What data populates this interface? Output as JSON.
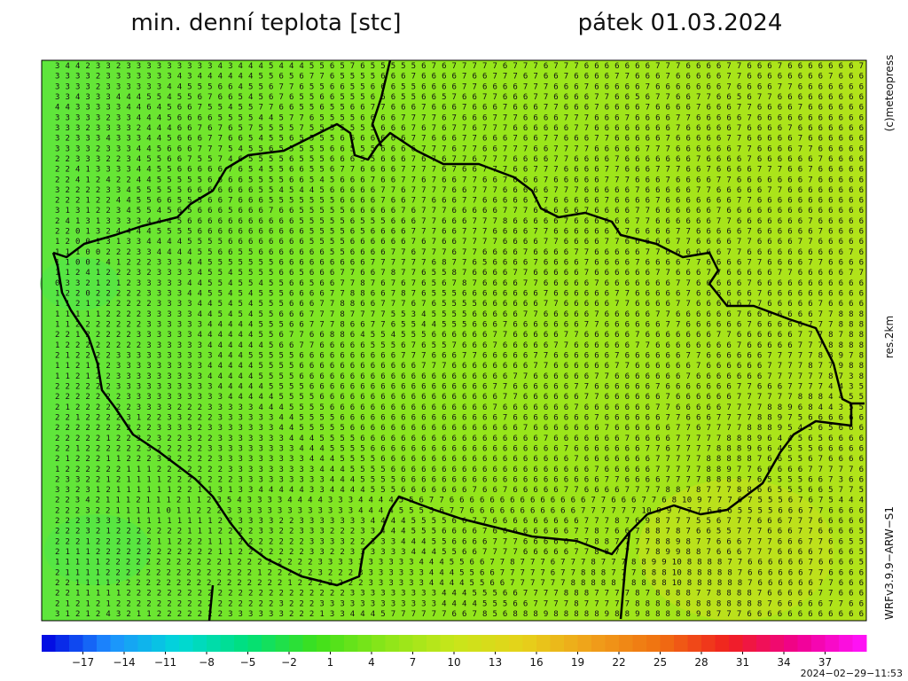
{
  "header": {
    "title": "min. denní teplota [stc]",
    "date": "pátek 01.03.2024"
  },
  "side_labels": {
    "copyright": "(c)meteopress",
    "resolution": "res.2km",
    "model": "WRFv3.9.9−ARW−S1"
  },
  "timestamp": "2024−02−29−11:53",
  "colorbar": {
    "clim": [
      -20,
      40
    ],
    "colors": [
      "#0000e0",
      "#1e90ff",
      "#00d8d8",
      "#00e07a",
      "#3ee01a",
      "#8ce619",
      "#c8e61a",
      "#e6d21a",
      "#f0a01a",
      "#f07010",
      "#f02020",
      "#f00090",
      "#ff14ff"
    ],
    "ticks": [
      {
        "value": -17,
        "label": "−17"
      },
      {
        "value": -14,
        "label": "−14"
      },
      {
        "value": -11,
        "label": "−11"
      },
      {
        "value": -8,
        "label": "−8"
      },
      {
        "value": -5,
        "label": "−5"
      },
      {
        "value": -2,
        "label": "−2"
      },
      1,
      4,
      7,
      10,
      13,
      16,
      19,
      22,
      25,
      28,
      31,
      34,
      37
    ]
  },
  "grid": {
    "rows": [
      "3 4 4 2 3 3 2 3 3 3 3 3 3 3 3 3 4 3 4 4 4 5 4 4 4 5 5 6 5 7 6 5 5 5 5 5 6 7 6 7 7 7 7 7 6 7 7 7 6 7 7 7 6 6 6 6 6 6 6 7 7 7 6 6 6 6 7 7 6 6 6 7 6 6 6 6 6 6 6 7",
      "3 3 3 3 2 3 3 3 3 3 3 3 4 3 4 4 4 4 4 4 5 5 6 5 6 7 7 6 5 5 5 5 6 6 6 7 6 6 6 6 7 6 6 7 7 7 6 7 6 6 7 6 6 6 6 7 7 6 6 6 7 6 6 6 6 6 7 7 6 6 6 6 6 6 6 6 7 6 6 6",
      "3 3 3 3 2 3 3 3 3 3 3 4 4 5 5 5 6 6 4 5 5 6 7 7 6 5 5 6 6 5 5 6 6 6 5 5 6 6 6 6 7 7 6 6 6 6 7 7 7 6 6 6 7 6 6 6 6 6 7 6 6 6 6 6 6 6 7 6 6 6 6 7 7 6 6 6 6 6 6 6",
      "3 3 4 3 3 3 4 4 4 5 5 4 5 5 6 7 6 6 5 4 5 6 7 6 5 5 6 6 5 5 5 6 6 6 5 5 6 6 5 7 6 6 7 7 6 6 6 7 7 6 6 6 6 7 7 6 6 5 6 7 7 6 6 7 7 6 6 5 6 7 7 6 6 6 6 6 6 6 6 6",
      "4 4 3 3 3 3 3 4 4 6 4 5 6 6 7 5 5 4 5 5 7 7 6 6 5 5 6 5 5 6 6 7 7 6 6 6 7 6 6 6 7 6 6 6 7 6 6 6 7 7 6 6 6 7 6 6 6 6 7 6 6 6 6 7 6 6 6 7 7 6 6 6 6 7 6 6 6 6 6 6",
      "3 3 3 3 3 2 3 3 4 4 4 5 6 6 6 6 5 5 5 5 4 4 5 7 7 6 5 5 5 5 6 6 6 6 7 7 7 7 6 7 6 6 6 7 7 7 6 6 6 6 7 7 7 6 6 6 7 6 6 6 6 7 7 6 6 6 6 6 7 6 6 6 6 6 6 6 6 6 6 6",
      "3 3 3 2 3 3 3 3 2 4 4 4 6 6 7 6 7 6 5 7 5 5 5 5 7 5 5 5 5 5 5 5 6 6 6 7 6 7 6 7 7 6 7 7 7 6 6 6 6 6 6 7 7 6 6 6 6 6 6 6 6 7 6 6 6 6 6 7 6 6 6 6 7 6 6 6 6 6 6 6",
      "3 2 3 3 3 4 3 3 3 4 4 5 6 6 6 7 7 6 6 5 4 5 5 6 5 5 5 5 6 6 6 6 6 6 6 7 7 6 6 6 7 7 6 6 6 7 6 6 7 7 6 6 6 7 7 6 6 6 6 6 7 6 6 6 6 6 7 7 6 6 6 6 6 7 6 6 6 6 6 6",
      "3 3 3 3 2 3 3 3 4 4 5 6 6 6 7 7 7 5 4 5 5 6 5 5 5 5 5 6 6 5 5 5 6 6 6 6 7 7 7 6 7 7 6 6 7 7 7 6 6 7 7 7 7 6 6 6 6 6 7 7 7 6 6 6 6 6 6 7 7 6 6 6 6 7 7 6 6 6 6 6",
      "2 2 3 3 3 2 2 3 4 5 5 6 6 7 5 5 7 4 6 5 5 5 5 6 5 5 5 6 6 6 5 5 6 6 6 7 6 7 6 7 7 6 7 7 7 6 6 6 6 7 7 6 6 6 6 7 6 6 6 6 6 6 6 7 6 6 6 6 7 6 6 6 6 6 6 7 6 6 6 6",
      "2 2 4 1 3 3 3 3 4 4 5 5 6 6 6 6 6 7 6 5 4 5 5 6 6 5 5 6 7 7 6 6 6 6 7 7 7 7 6 7 6 6 7 7 7 6 6 7 7 7 6 6 6 6 7 7 6 6 6 7 7 7 6 6 7 6 6 6 6 7 7 7 6 6 7 6 6 6 6 6",
      "2 2 4 1 2 4 2 2 4 4 5 5 5 5 5 6 6 6 6 5 5 5 5 6 6 5 4 5 6 6 6 7 6 6 7 7 6 7 6 6 7 7 6 6 7 6 6 6 7 6 6 6 6 6 7 7 7 6 6 6 7 6 6 6 6 7 7 6 6 6 6 6 6 6 7 6 6 6 6 6",
      "3 2 2 2 2 3 3 4 5 5 5 5 5 6 6 6 6 6 6 6 5 5 4 5 4 4 5 6 6 6 6 6 7 7 6 7 7 7 7 6 6 7 7 7 6 6 6 6 6 7 7 7 6 6 6 6 6 7 6 6 6 6 6 7 7 6 6 6 6 6 7 7 6 6 6 6 6 6 6 6",
      "2 2 2 1 2 2 4 4 5 5 6 6 5 5 5 6 6 7 6 6 6 5 5 5 5 5 5 5 6 6 6 6 7 6 6 7 7 6 6 6 7 7 6 6 6 6 6 7 7 6 6 6 6 6 7 6 6 6 6 7 6 6 6 6 6 6 6 7 7 6 6 6 6 6 6 6 6 6 6 6",
      "3 1 3 1 2 2 3 4 5 5 4 5 6 5 6 6 6 5 6 6 6 7 6 6 5 5 5 5 5 6 6 6 6 6 7 6 7 7 7 6 6 6 6 6 7 7 7 6 6 6 6 6 7 6 6 6 6 7 7 6 6 6 6 6 6 7 6 6 6 6 6 6 6 6 6 6 6 6 6 6",
      "2 4 1 3 1 3 3 3 3 4 4 4 5 6 6 6 6 6 6 6 6 6 6 6 5 5 5 5 5 6 5 5 5 6 6 6 7 7 6 6 6 7 7 7 8 6 6 6 6 6 7 6 6 6 6 6 6 7 7 6 6 6 6 6 6 7 7 6 6 6 6 6 6 6 7 6 6 6 6 6",
      "2 2 0 1 3 2 4 4 4 4 5 5 5 5 6 6 6 6 6 6 6 6 6 6 6 5 5 5 5 6 5 6 6 6 6 7 7 7 6 6 7 7 7 6 6 6 6 7 7 6 6 6 6 6 6 7 7 6 6 6 6 7 7 6 6 6 6 6 7 6 6 6 6 6 6 7 6 6 6 6",
      "1 2 0 0 1 3 1 3 3 4 4 4 4 5 5 5 5 6 6 6 6 6 6 6 6 5 5 5 5 6 6 6 6 6 6 7 6 7 6 6 7 7 7 7 6 6 6 6 7 7 6 6 6 6 7 7 6 6 6 6 6 7 7 6 6 6 6 7 7 6 6 6 6 7 7 6 6 6 6 6",
      "1 1 1 0 0 2 2 2 3 3 4 4 4 4 5 5 6 6 5 5 6 6 6 6 6 6 6 5 5 6 6 6 6 7 7 6 7 7 7 6 7 7 6 6 6 6 7 6 6 6 6 7 7 6 6 6 6 6 7 7 6 6 6 6 6 6 7 7 6 6 6 6 6 6 6 6 6 6 7 6",
      "1 1 0 0 2 4 1 2 2 2 3 3 3 4 4 5 5 5 5 5 5 5 6 6 6 6 6 6 6 6 6 7 7 7 7 7 7 6 8 7 7 6 5 6 6 6 6 7 6 6 6 6 7 6 6 6 6 7 6 6 6 6 7 7 6 6 6 6 7 7 6 6 6 6 7 7 6 6 6 6",
      "1 1 2 4 1 2 2 2 3 2 3 3 3 3 4 5 5 4 5 5 5 5 6 6 5 6 6 6 7 7 6 6 7 8 7 7 6 5 5 8 7 6 6 6 6 7 7 6 6 6 6 6 7 6 6 6 6 6 6 7 7 6 6 6 7 7 6 6 6 6 6 7 7 6 6 6 6 6 7 7",
      "0 3 3 2 1 2 1 2 3 3 3 3 3 4 4 5 5 4 5 5 4 5 5 6 6 5 6 6 7 7 8 7 6 7 6 7 6 5 6 7 8 7 6 6 6 6 7 7 6 6 6 6 6 7 6 6 6 6 6 6 6 7 7 6 6 6 6 6 7 6 6 6 6 6 6 6 6 6 6 6",
      "1 2 2 0 2 2 2 2 2 3 3 3 3 4 4 5 5 4 5 4 5 5 5 6 6 6 6 7 7 8 8 6 6 7 8 7 6 5 5 5 6 6 6 6 6 6 6 6 7 6 6 6 6 6 6 7 7 6 6 6 6 6 7 6 6 6 6 6 6 7 6 6 6 6 6 6 6 6 6 6",
      "1 1 2 1 2 2 2 2 2 2 3 3 3 3 4 4 5 4 5 4 5 5 5 6 6 6 7 7 8 8 6 6 7 7 7 6 7 6 5 5 5 5 6 6 6 6 6 6 7 7 6 6 6 6 6 7 7 6 6 6 6 7 7 6 6 6 6 6 7 7 6 6 6 6 6 7 6 6 6 6",
      "1 1 1 1 1 2 2 2 2 3 3 3 3 3 4 4 5 4 5 4 5 5 6 6 6 7 7 7 8 7 7 7 7 5 5 3 4 5 5 5 5 6 6 6 6 6 7 7 6 6 6 6 6 7 6 6 6 6 6 7 7 6 6 6 6 6 6 7 6 6 6 6 6 6 6 7 7 8 8 8",
      "1 1 2 2 2 2 2 2 2 3 3 3 3 3 3 4 4 4 4 4 5 5 5 6 6 7 7 7 8 6 6 7 7 6 5 5 4 4 5 5 5 6 6 6 7 6 6 6 6 6 6 6 7 7 6 6 6 6 6 6 7 7 6 6 6 6 6 6 7 6 6 6 6 6 7 7 7 8 8 8",
      "2 2 1 2 2 2 2 2 3 3 3 3 3 3 4 4 4 4 4 4 5 5 6 7 7 6 6 8 8 6 4 5 5 4 5 5 5 6 6 6 6 6 6 7 7 6 6 6 6 6 7 7 6 6 6 6 6 7 6 6 6 6 6 6 6 7 7 6 6 6 6 6 6 7 7 7 8 7 8 8",
      "1 2 2 2 2 2 2 2 2 3 3 3 3 3 3 4 4 4 4 4 4 5 6 6 7 7 6 6 6 6 6 5 5 5 6 7 6 5 5 7 6 6 6 7 6 6 6 6 6 7 7 6 6 6 6 6 6 7 7 6 6 6 6 6 6 6 6 7 6 6 6 6 6 7 7 7 8 8 8 8",
      "2 1 2 2 2 2 3 3 3 3 3 3 3 3 3 3 4 4 4 5 5 5 5 5 6 6 6 6 6 6 6 6 6 6 7 7 7 6 6 6 7 7 6 6 6 6 6 7 7 6 6 6 6 6 6 7 6 6 6 6 6 6 7 7 6 6 6 6 6 6 7 7 7 7 7 8 8 9 7 8",
      "1 1 2 1 2 2 3 3 3 3 3 3 3 3 3 4 4 4 4 4 5 5 5 5 6 6 6 6 6 6 6 6 6 6 6 6 7 7 7 6 6 6 6 6 6 6 6 7 7 6 6 6 6 6 6 7 7 6 6 6 6 6 6 7 6 6 6 6 6 6 7 7 7 7 8 7 7 9 8 8",
      "1 1 2 1 2 2 3 3 3 3 3 3 3 3 3 4 4 4 4 4 5 5 5 5 6 6 6 6 6 6 6 6 6 6 6 6 6 6 6 6 6 6 6 6 6 7 7 6 6 6 6 6 6 7 7 6 6 6 6 6 6 6 7 6 6 6 6 6 6 6 7 7 7 7 7 7 8 7 3 8",
      "2 2 2 2 2 2 3 3 3 3 3 3 3 3 3 3 4 4 4 4 4 5 5 5 5 6 6 6 6 6 6 6 6 6 6 6 6 6 6 6 6 6 6 7 7 6 6 6 6 6 6 7 7 6 6 6 6 6 6 7 6 6 6 6 6 6 6 7 7 6 6 6 7 7 7 7 4 4 3 5",
      "2 2 2 2 2 2 2 3 3 3 3 3 3 3 3 3 3 4 4 4 4 4 5 5 5 5 6 6 6 6 6 6 6 6 6 6 6 6 6 6 6 6 6 6 7 7 6 6 6 6 6 6 7 7 6 6 6 6 6 6 7 6 6 6 6 6 6 7 7 7 7 7 7 8 8 8 4 4 5 5",
      "2 1 2 2 2 2 2 2 3 3 3 3 2 2 2 3 3 3 3 3 4 4 4 5 5 5 5 6 6 6 6 6 6 6 6 6 6 6 6 6 6 6 6 7 6 6 6 6 6 6 6 7 6 6 6 6 6 6 6 7 7 6 6 6 6 6 7 7 7 7 8 8 9 6 8 4 4 3 5 5",
      "2 2 1 2 2 2 2 3 1 2 2 3 3 2 2 2 3 3 3 3 3 3 4 4 5 5 5 5 6 6 6 6 6 6 6 6 6 6 6 6 6 6 6 6 7 6 6 6 6 6 6 6 6 7 6 6 6 6 6 6 7 7 6 6 6 7 7 7 7 8 8 9 7 5 6 6 6 6 6 6",
      "2 2 2 2 2 2 2 2 2 2 3 3 3 3 2 3 3 3 3 3 3 3 4 4 5 5 5 5 5 6 6 6 6 6 6 6 6 6 6 6 6 6 6 6 6 6 7 6 6 6 6 6 6 6 7 6 6 6 6 6 6 7 7 6 7 7 7 7 8 8 8 9 5 4 5 6 5 6 6 6",
      "2 2 2 2 2 1 2 2 3 2 3 2 2 3 2 2 3 3 3 3 3 3 3 4 4 4 5 5 5 5 6 6 6 6 6 6 6 6 6 6 6 6 6 6 6 6 6 6 7 6 6 6 6 6 6 6 7 6 6 6 6 7 7 7 7 7 8 8 8 9 6 4 4 5 6 5 6 6 6 6",
      "2 2 1 2 2 2 2 2 2 3 2 2 2 2 2 3 3 3 3 3 3 3 3 3 4 4 4 5 5 5 5 6 6 6 6 6 6 6 6 6 6 6 6 6 6 6 6 6 6 6 7 6 6 6 6 6 6 6 7 7 6 7 7 7 7 8 8 8 9 6 6 4 5 5 5 6 6 6 6 6",
      "2 1 2 2 2 1 1 2 2 2 3 3 2 2 2 2 3 3 3 3 3 3 3 3 3 4 4 4 5 5 5 5 6 6 6 6 6 6 6 6 6 6 6 6 6 6 6 6 6 6 6 7 6 6 6 6 6 6 6 7 7 7 7 7 8 8 8 8 8 7 6 6 5 5 6 7 6 6 6 6",
      "1 2 2 2 2 2 2 1 1 1 2 2 2 2 2 2 2 3 3 3 3 3 3 3 3 3 4 4 4 5 5 5 5 6 6 6 6 6 6 6 6 6 6 6 6 6 6 6 6 6 6 6 6 7 6 6 6 6 6 7 7 7 7 7 8 8 9 7 7 6 6 6 6 6 7 7 7 7 7 6",
      "2 3 3 2 2 1 2 1 1 1 1 2 2 2 2 2 2 2 3 3 3 3 3 3 3 3 3 4 4 4 5 5 5 5 6 6 6 6 6 6 6 6 6 6 6 6 6 6 6 6 6 6 6 6 7 7 6 6 6 6 7 7 7 7 8 8 8 8 7 6 5 5 5 5 6 6 7 3 6 6",
      "3 3 2 3 1 2 1 1 1 1 1 1 2 2 1 1 3 1 3 3 4 4 4 4 4 3 3 4 4 4 4 5 5 5 6 6 6 6 6 6 6 7 6 6 7 6 6 6 6 6 7 7 6 6 6 6 7 7 7 7 8 8 7 8 7 7 7 8 8 6 6 5 5 5 6 6 5 7 7 5",
      "2 2 3 4 2 1 1 1 2 1 1 1 2 1 1 2 3 5 4 3 3 3 3 4 4 4 4 3 3 3 4 4 4 4 5 5 6 7 7 6 6 6 6 6 6 6 6 6 6 6 6 6 6 7 7 6 6 6 7 7 6 8 10 9 7 7 7 6 7 5 5 5 6 7 6 7 5 4 4 4",
      "2 2 2 3 2 2 1 1 1 1 1 0 1 1 2 2 2 3 3 3 3 3 3 3 3 3 3 3 3 3 4 4 4 4 5 5 5 5 6 7 7 6 6 6 6 6 6 6 6 6 6 6 7 7 7 7 7 7 10 9 9 7 7 7 6 6 6 5 5 5 5 6 6 6 7 7 6 6 6 6",
      "2 2 2 3 3 3 3 1 1 1 1 1 1 1 1 1 2 2 3 3 3 3 2 2 3 3 3 3 3 3 3 4 4 4 4 5 5 5 5 6 6 7 7 6 6 6 6 6 6 6 6 6 7 7 7 8 7 6 9 8 7 7 7 5 5 6 7 7 7 6 6 6 7 7 7 6 6 6 6 6",
      "2 2 2 3 2 1 2 2 2 2 2 2 2 1 1 1 2 2 2 2 3 3 2 2 3 3 3 2 2 2 3 3 4 4 4 5 5 5 6 6 6 6 7 6 6 6 6 6 6 6 6 7 7 8 7 6 6 7 8 8 7 8 7 6 6 5 5 7 7 7 6 6 6 7 7 6 6 6 6 5",
      "2 2 2 1 2 2 2 2 2 2 1 1 2 2 2 1 1 1 2 2 2 2 2 2 2 3 3 3 3 2 2 3 3 3 4 4 4 5 5 6 6 6 6 7 7 7 6 6 6 6 6 7 7 8 8 7 7 7 7 8 8 9 8 7 7 6 6 6 7 7 7 6 6 6 7 7 6 6 5 5",
      "2 1 1 1 2 2 2 2 2 2 2 2 2 2 2 2 1 1 2 2 2 2 2 2 2 3 3 2 2 3 3 3 3 3 3 4 4 4 5 5 6 6 7 7 7 7 6 6 6 6 6 7 7 8 8 7 7 7 7 8 9 9 8 8 7 6 6 6 7 7 7 6 6 6 6 7 6 6 6 5",
      "1 1 1 1 1 2 2 2 2 2 2 2 2 2 2 2 2 1 2 2 2 2 2 2 2 2 3 3 3 3 3 3 3 3 3 3 4 4 4 5 5 6 6 7 7 8 7 7 7 6 7 7 7 8 7 7 7 8 8 9 9 10 8 8 8 8 7 7 6 6 6 6 6 6 7 6 6 6 6 5",
      "2 1 1 1 1 2 2 2 2 2 2 2 2 2 2 2 2 2 2 2 1 2 2 2 2 2 3 2 2 2 3 3 3 3 3 3 3 4 4 4 5 5 6 6 7 7 7 7 7 6 7 7 8 8 8 7 7 7 8 8 8 10 8 8 8 8 8 7 6 6 6 6 6 6 7 7 6 6 6 6",
      "2 2 1 1 1 1 2 2 2 2 2 2 2 2 2 2 2 2 2 2 2 2 2 1 2 2 2 2 2 2 2 3 3 3 3 3 3 4 4 4 4 5 5 6 6 7 7 7 7 7 7 8 8 8 8 8 7 8 8 8 8 10 8 8 8 8 8 8 7 6 6 6 6 6 6 7 7 6 6 6",
      "2 2 1 1 1 1 1 2 2 2 2 2 2 2 2 2 2 2 2 2 2 2 2 2 2 2 2 2 2 3 3 3 3 3 3 3 3 3 4 4 4 5 5 5 6 6 7 7 7 7 8 8 8 7 7 7 7 8 7 8 8 8 8 7 7 8 8 8 8 7 6 6 6 6 6 7 7 6 6 6",
      "2 1 2 1 2 1 2 2 2 2 2 2 2 2 2 2 2 2 2 2 2 2 3 2 2 2 3 3 3 3 3 3 3 3 3 3 3 3 4 4 4 4 5 5 5 6 6 7 7 7 7 8 7 7 7 7 7 8 8 8 8 8 8 8 8 8 8 8 8 8 7 6 6 6 6 6 7 7 6 6",
      "3 1 2 1 2 4 3 2 1 1 2 2 2 2 2 2 2 3 3 3 3 3 3 2 2 2 1 3 3 4 4 4 5 7 7 7 7 7 7 6 6 7 8 5 6 8 8 8 9 8 8 8 8 8 9 8 8 9 8 8 8 8 8 9 8 7 7 7 6 6 6 6 6 6 6 6 6 6 6 6"
    ]
  }
}
